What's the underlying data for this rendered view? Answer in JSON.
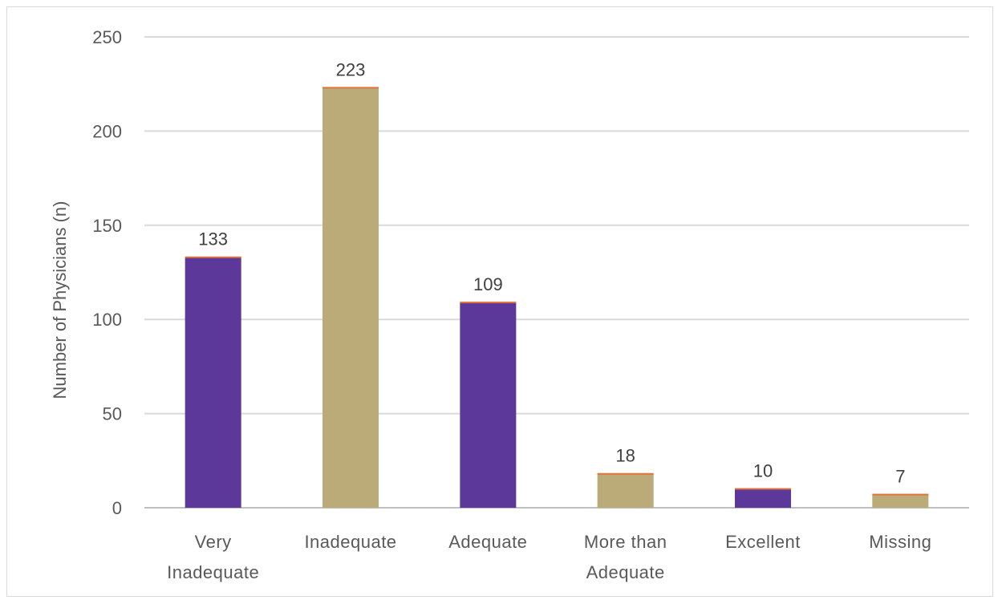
{
  "chart_data": {
    "type": "bar",
    "title": "",
    "xlabel": "",
    "ylabel": "Number of Physicians (n)",
    "ylim": [
      0,
      250
    ],
    "yticks": [
      0,
      50,
      100,
      150,
      200,
      250
    ],
    "grid": true,
    "categories": [
      [
        "Very",
        "Inadequate"
      ],
      [
        "Inadequate"
      ],
      [
        "Adequate"
      ],
      [
        "More than",
        "Adequate"
      ],
      [
        "Excellent"
      ],
      [
        "Missing"
      ]
    ],
    "values": [
      133,
      223,
      109,
      18,
      10,
      7
    ],
    "colors": [
      "#5b3899",
      "#baab78",
      "#5b3899",
      "#baab78",
      "#5b3899",
      "#baab78"
    ],
    "cap_color": "#e0733a"
  }
}
